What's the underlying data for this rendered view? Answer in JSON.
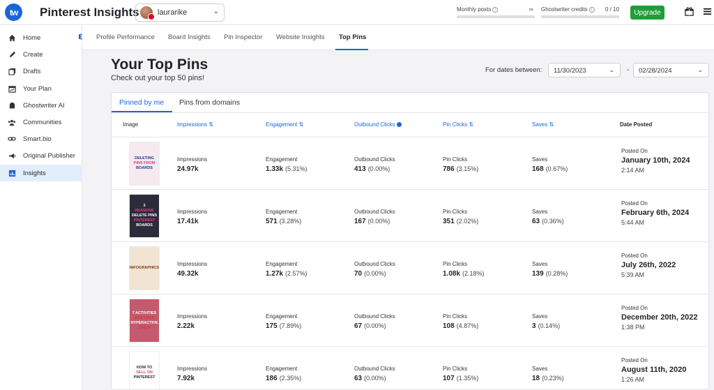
{
  "app": {
    "logo_text": "tw",
    "title": "Pinterest Insights"
  },
  "account": {
    "name": "laurarike"
  },
  "usage": {
    "monthly_posts_label": "Monthly posts",
    "monthly_posts_value": "∞",
    "ghostwriter_label": "Ghostwriter credits",
    "ghostwriter_value": "0 / 10"
  },
  "upgrade_label": "Upgrade",
  "sidebar": {
    "items": [
      {
        "label": "Home",
        "icon": "home-icon"
      },
      {
        "label": "Create",
        "icon": "pencil-icon"
      },
      {
        "label": "Drafts",
        "icon": "drafts-icon"
      },
      {
        "label": "Your Plan",
        "icon": "calendar-icon"
      },
      {
        "label": "Ghostwriter AI",
        "icon": "ghost-icon"
      },
      {
        "label": "Communities",
        "icon": "people-icon"
      },
      {
        "label": "Smart.bio",
        "icon": "link-icon"
      },
      {
        "label": "Original Publisher",
        "icon": "megaphone-icon"
      },
      {
        "label": "Insights",
        "icon": "chart-icon"
      }
    ],
    "active_index": 8
  },
  "tabs": [
    "Profile Performance",
    "Board Insights",
    "Pin Inspector",
    "Website Insights",
    "Top Pins"
  ],
  "page": {
    "title": "Your Top Pins",
    "subtitle": "Check out your top 50 pins!"
  },
  "dates": {
    "label": "For dates between:",
    "start": "11/30/2023",
    "separator": "-",
    "end": "02/28/2024"
  },
  "subtabs": [
    "Pinned by me",
    "Pins from domains"
  ],
  "columns": [
    "Image",
    "Impressions",
    "Engagement",
    "Outbound Clicks",
    "Pin Clicks",
    "Saves",
    "Date Posted"
  ],
  "labels": {
    "impressions": "Impressions",
    "engagement": "Engagement",
    "outbound": "Outbound Clicks",
    "pin_clicks": "Pin Clicks",
    "saves": "Saves",
    "posted_on": "Posted On"
  },
  "thumbnails": [
    {
      "lines": [
        "DELETING",
        "PINS FROM",
        "BOARDS"
      ]
    },
    {
      "lines": [
        "3",
        "REASONS",
        "DELETE PINS",
        "PINTEREST",
        "BOARDS"
      ]
    },
    {
      "lines": [
        "INFOGRAPHICS"
      ]
    },
    {
      "lines": [
        "7 ACTIVITIES",
        "FOR YOUR",
        "HYPERACTIVE",
        "CHILD"
      ]
    },
    {
      "lines": [
        "HOW TO",
        "SELL ON",
        "PINTEREST"
      ]
    }
  ],
  "rows": [
    {
      "impressions": "24.97k",
      "engagement": "1.33k",
      "engagement_pct": "(5.31%)",
      "outbound": "413",
      "outbound_pct": "(0.00%)",
      "pin_clicks": "786",
      "pin_clicks_pct": "(3.15%)",
      "saves": "168",
      "saves_pct": "(0.67%)",
      "date": "January 10th, 2024",
      "time": "2:14 AM"
    },
    {
      "impressions": "17.41k",
      "engagement": "571",
      "engagement_pct": "(3.28%)",
      "outbound": "167",
      "outbound_pct": "(0.00%)",
      "pin_clicks": "351",
      "pin_clicks_pct": "(2.02%)",
      "saves": "63",
      "saves_pct": "(0.36%)",
      "date": "February 6th, 2024",
      "time": "5:44 AM"
    },
    {
      "impressions": "49.32k",
      "engagement": "1.27k",
      "engagement_pct": "(2.57%)",
      "outbound": "70",
      "outbound_pct": "(0.00%)",
      "pin_clicks": "1.08k",
      "pin_clicks_pct": "(2.18%)",
      "saves": "139",
      "saves_pct": "(0.28%)",
      "date": "July 26th, 2022",
      "time": "5:39 AM"
    },
    {
      "impressions": "2.22k",
      "engagement": "175",
      "engagement_pct": "(7.89%)",
      "outbound": "67",
      "outbound_pct": "(0.00%)",
      "pin_clicks": "108",
      "pin_clicks_pct": "(4.87%)",
      "saves": "3",
      "saves_pct": "(0.14%)",
      "date": "December 20th, 2022",
      "time": "1:38 PM"
    },
    {
      "impressions": "7.92k",
      "engagement": "186",
      "engagement_pct": "(2.35%)",
      "outbound": "63",
      "outbound_pct": "(0.00%)",
      "pin_clicks": "107",
      "pin_clicks_pct": "(1.35%)",
      "saves": "18",
      "saves_pct": "(0.23%)",
      "date": "August 11th, 2020",
      "time": "1:26 AM"
    }
  ],
  "colors": {
    "accent": "#1a66d8",
    "upgrade": "#1f9d3a",
    "active_bg": "#e3eefb"
  }
}
